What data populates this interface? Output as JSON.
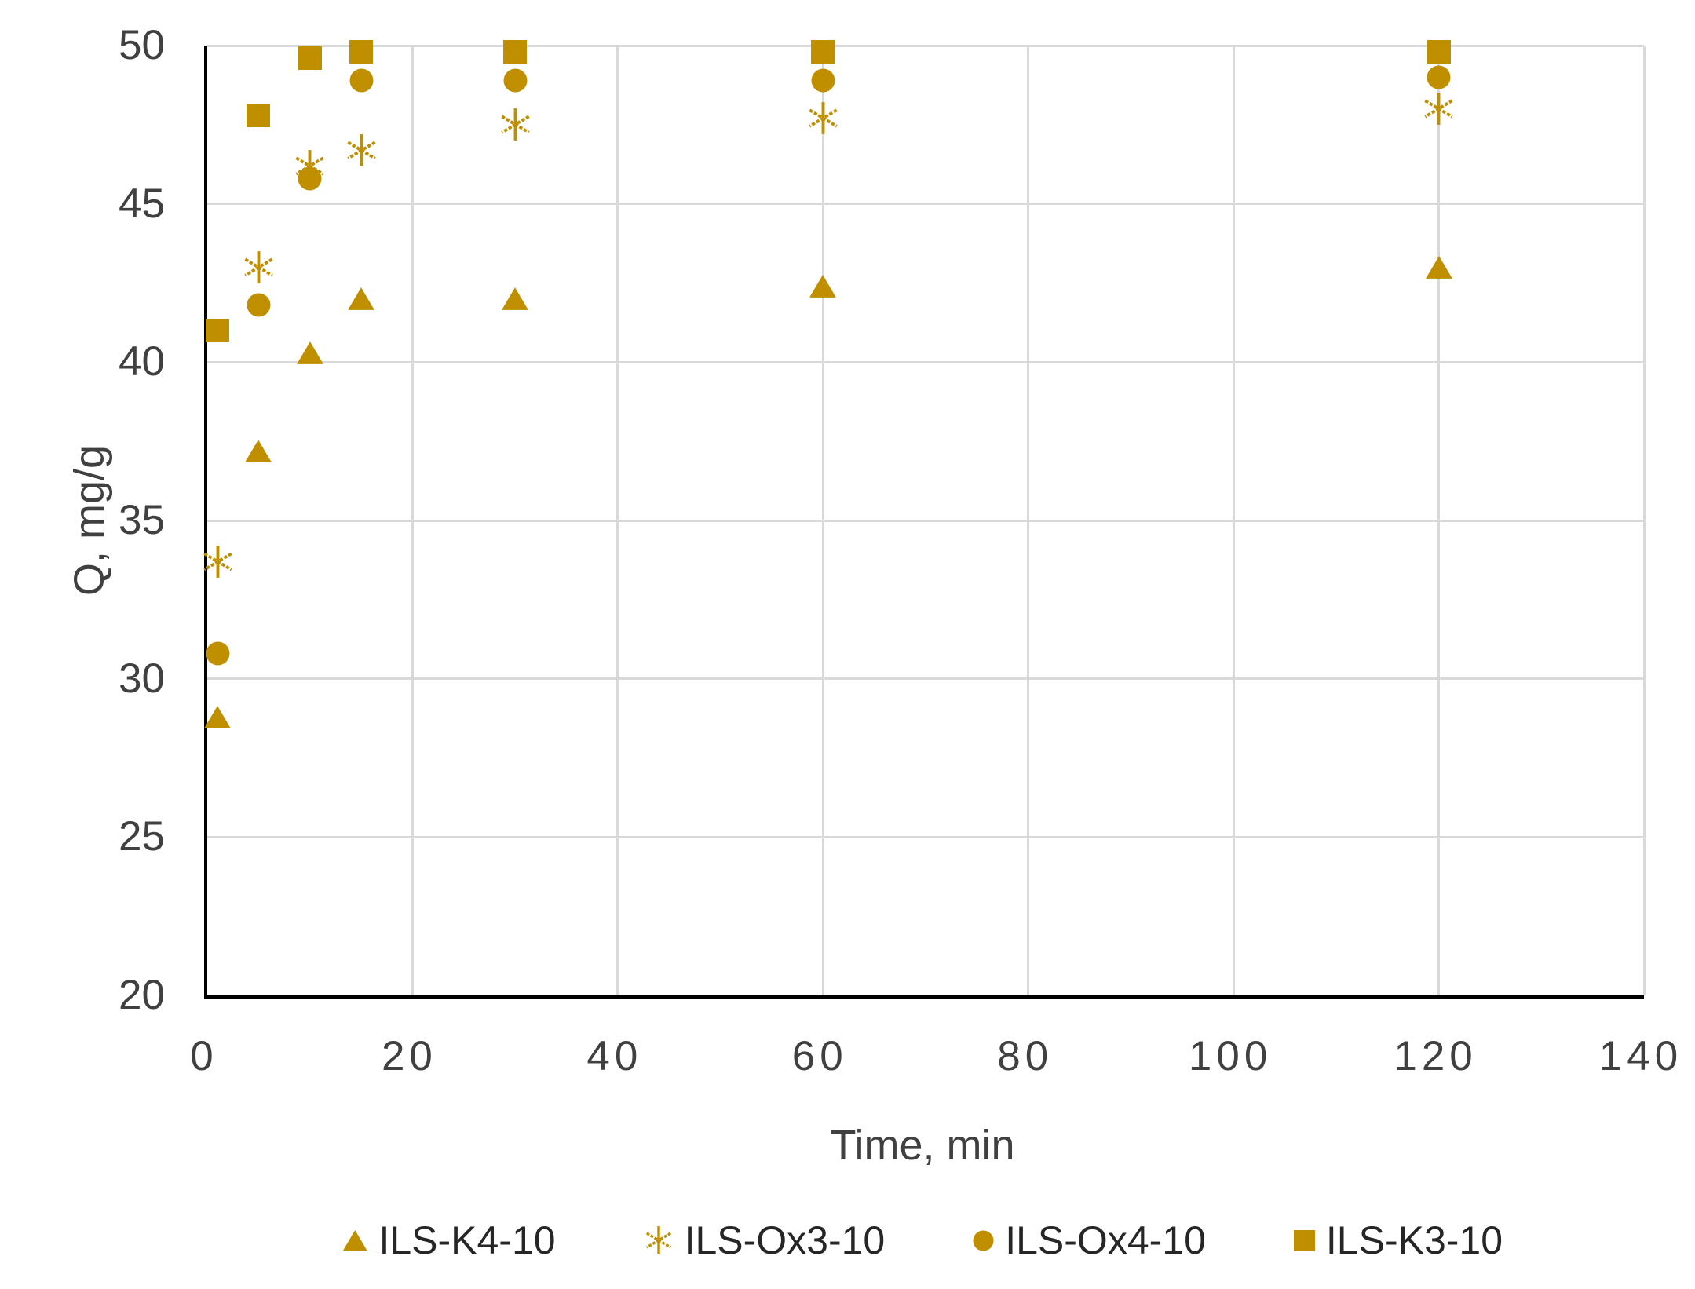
{
  "chart_data": {
    "type": "scatter",
    "title": "",
    "xlabel": "Time, min",
    "ylabel": "Q, mg/g",
    "xlim": [
      0,
      140
    ],
    "ylim": [
      20,
      50
    ],
    "x_ticks": [
      0,
      20,
      40,
      60,
      80,
      100,
      120,
      140
    ],
    "y_ticks": [
      20,
      25,
      30,
      35,
      40,
      45,
      50
    ],
    "grid": true,
    "legend_position": "bottom",
    "x": [
      1,
      5,
      10,
      15,
      30,
      60,
      120
    ],
    "series": [
      {
        "name": "ILS-K4-10",
        "marker": "triangle",
        "values": [
          28.8,
          37.2,
          40.3,
          42.0,
          42.0,
          42.4,
          43.0
        ]
      },
      {
        "name": "ILS-Ox3-10",
        "marker": "asterisk",
        "values": [
          33.7,
          43.0,
          46.2,
          46.7,
          47.5,
          47.7,
          48.0
        ]
      },
      {
        "name": "ILS-Ox4-10",
        "marker": "circle",
        "values": [
          30.8,
          41.8,
          45.8,
          48.9,
          48.9,
          48.9,
          49.0
        ]
      },
      {
        "name": "ILS-K3-10",
        "marker": "square",
        "values": [
          41.0,
          47.8,
          49.6,
          49.8,
          49.8,
          49.8,
          49.8
        ]
      }
    ]
  },
  "colors": {
    "marker": "#BF8F00",
    "gridline": "#D9D9D9",
    "axis": "#000000",
    "text": "#404040",
    "background": "#FFFFFF"
  }
}
